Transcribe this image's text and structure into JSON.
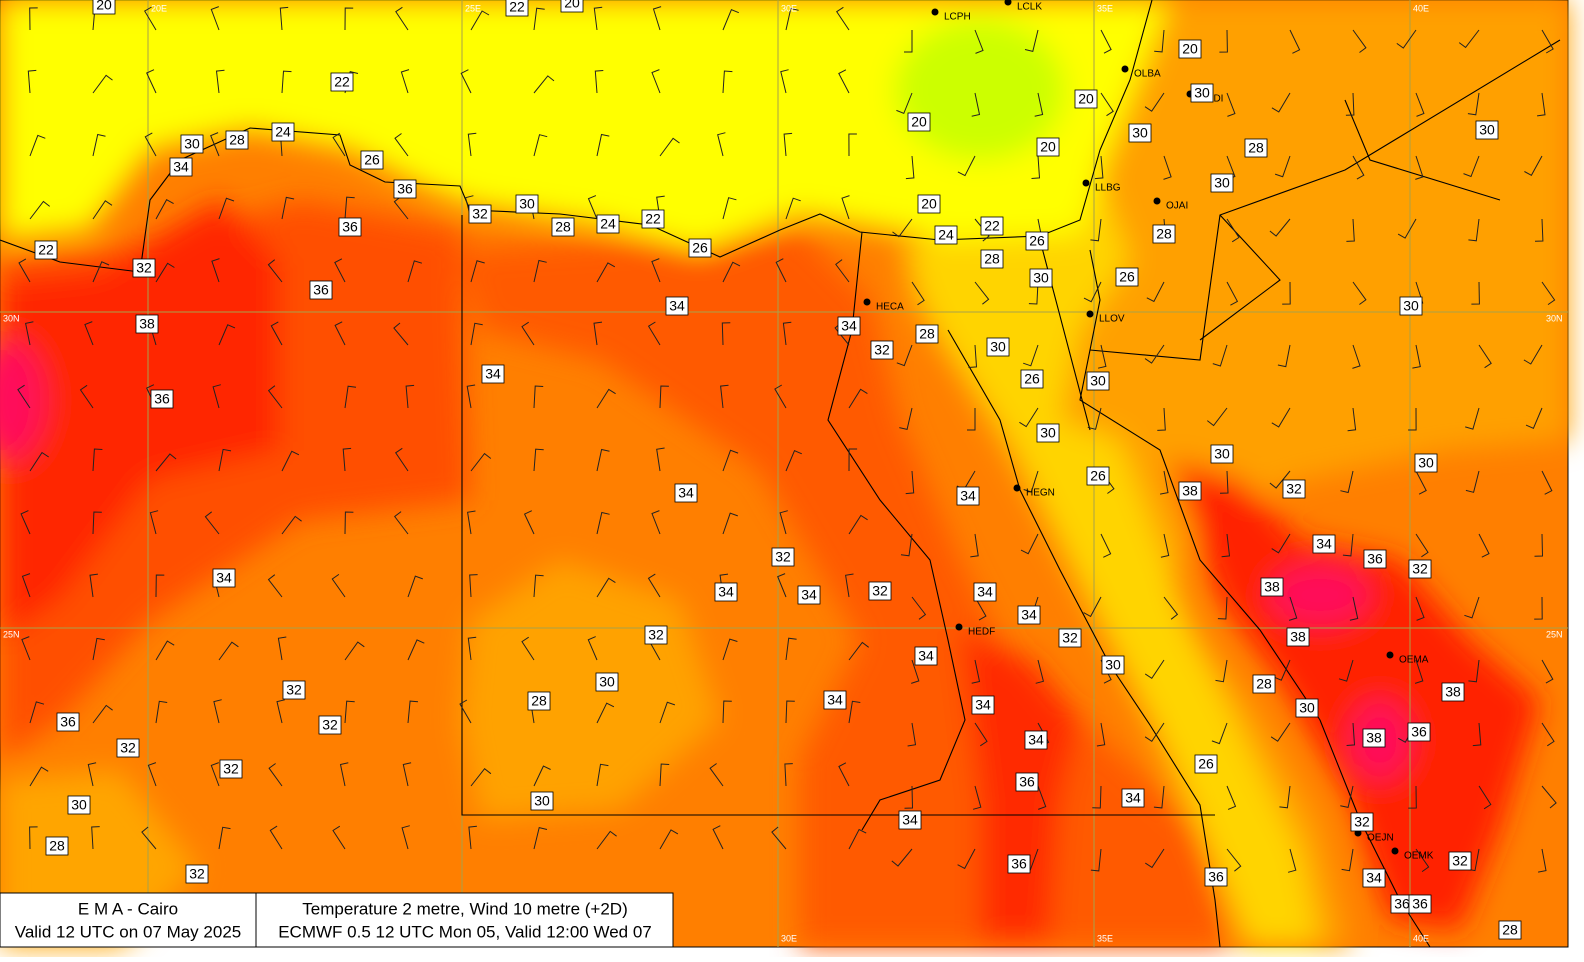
{
  "header": {
    "org": "E M A  -  Cairo",
    "valid": "Valid 12 UTC on 07 May 2025",
    "product": "Temperature  2 metre, Wind  10 metre (+2D)",
    "run": "ECMWF 0.5 12 UTC Mon 05, Valid 12:00 Wed 07"
  },
  "graticule": {
    "top": [
      "20E",
      "25E",
      "30E",
      "35E",
      "40E"
    ],
    "bottom": [
      "30E",
      "35E",
      "40E"
    ],
    "left": [
      "30N",
      "25N"
    ],
    "right": [
      "30N",
      "25N"
    ]
  },
  "stations": [
    "LCPH",
    "LCLK",
    "OLBA",
    "OSDI",
    "LLBG",
    "OJAI",
    "HECA",
    "LLOV",
    "HEGN",
    "HEDF",
    "OEMA",
    "OEJN",
    "OEMK"
  ],
  "contour_labels": [
    20,
    22,
    20,
    22,
    20,
    20,
    20,
    30,
    30,
    20,
    28,
    30,
    30,
    28,
    24,
    26,
    34,
    36,
    30,
    20,
    32,
    30,
    28,
    24,
    22,
    36,
    22,
    24,
    26,
    28,
    26,
    22,
    32,
    28,
    30,
    26,
    36,
    34,
    30,
    38,
    34,
    28,
    32,
    30,
    26,
    30,
    34,
    36,
    30,
    30,
    30,
    26,
    38,
    32,
    34,
    34,
    34,
    36,
    32,
    32,
    34,
    38,
    34,
    34,
    32,
    34,
    34,
    32,
    38,
    32,
    34,
    30,
    38,
    30,
    28,
    32,
    28,
    34,
    34,
    30,
    36,
    32,
    36,
    38,
    34,
    32,
    26,
    32,
    36,
    34,
    30,
    30,
    34,
    32,
    28,
    36,
    32,
    32,
    34,
    36,
    36,
    36,
    28
  ]
}
